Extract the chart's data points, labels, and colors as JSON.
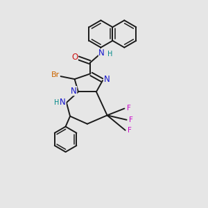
{
  "bg_color": "#e6e6e6",
  "bond_color": "#1a1a1a",
  "bond_width": 1.4,
  "atom_colors": {
    "N": "#1414cc",
    "O": "#cc1414",
    "Br": "#cc6600",
    "F": "#cc00cc",
    "H_N": "#008888",
    "C": "#1a1a1a"
  },
  "font_size": 8.5,
  "xlim": [
    -0.5,
    3.2
  ],
  "ylim": [
    -2.0,
    2.6
  ]
}
